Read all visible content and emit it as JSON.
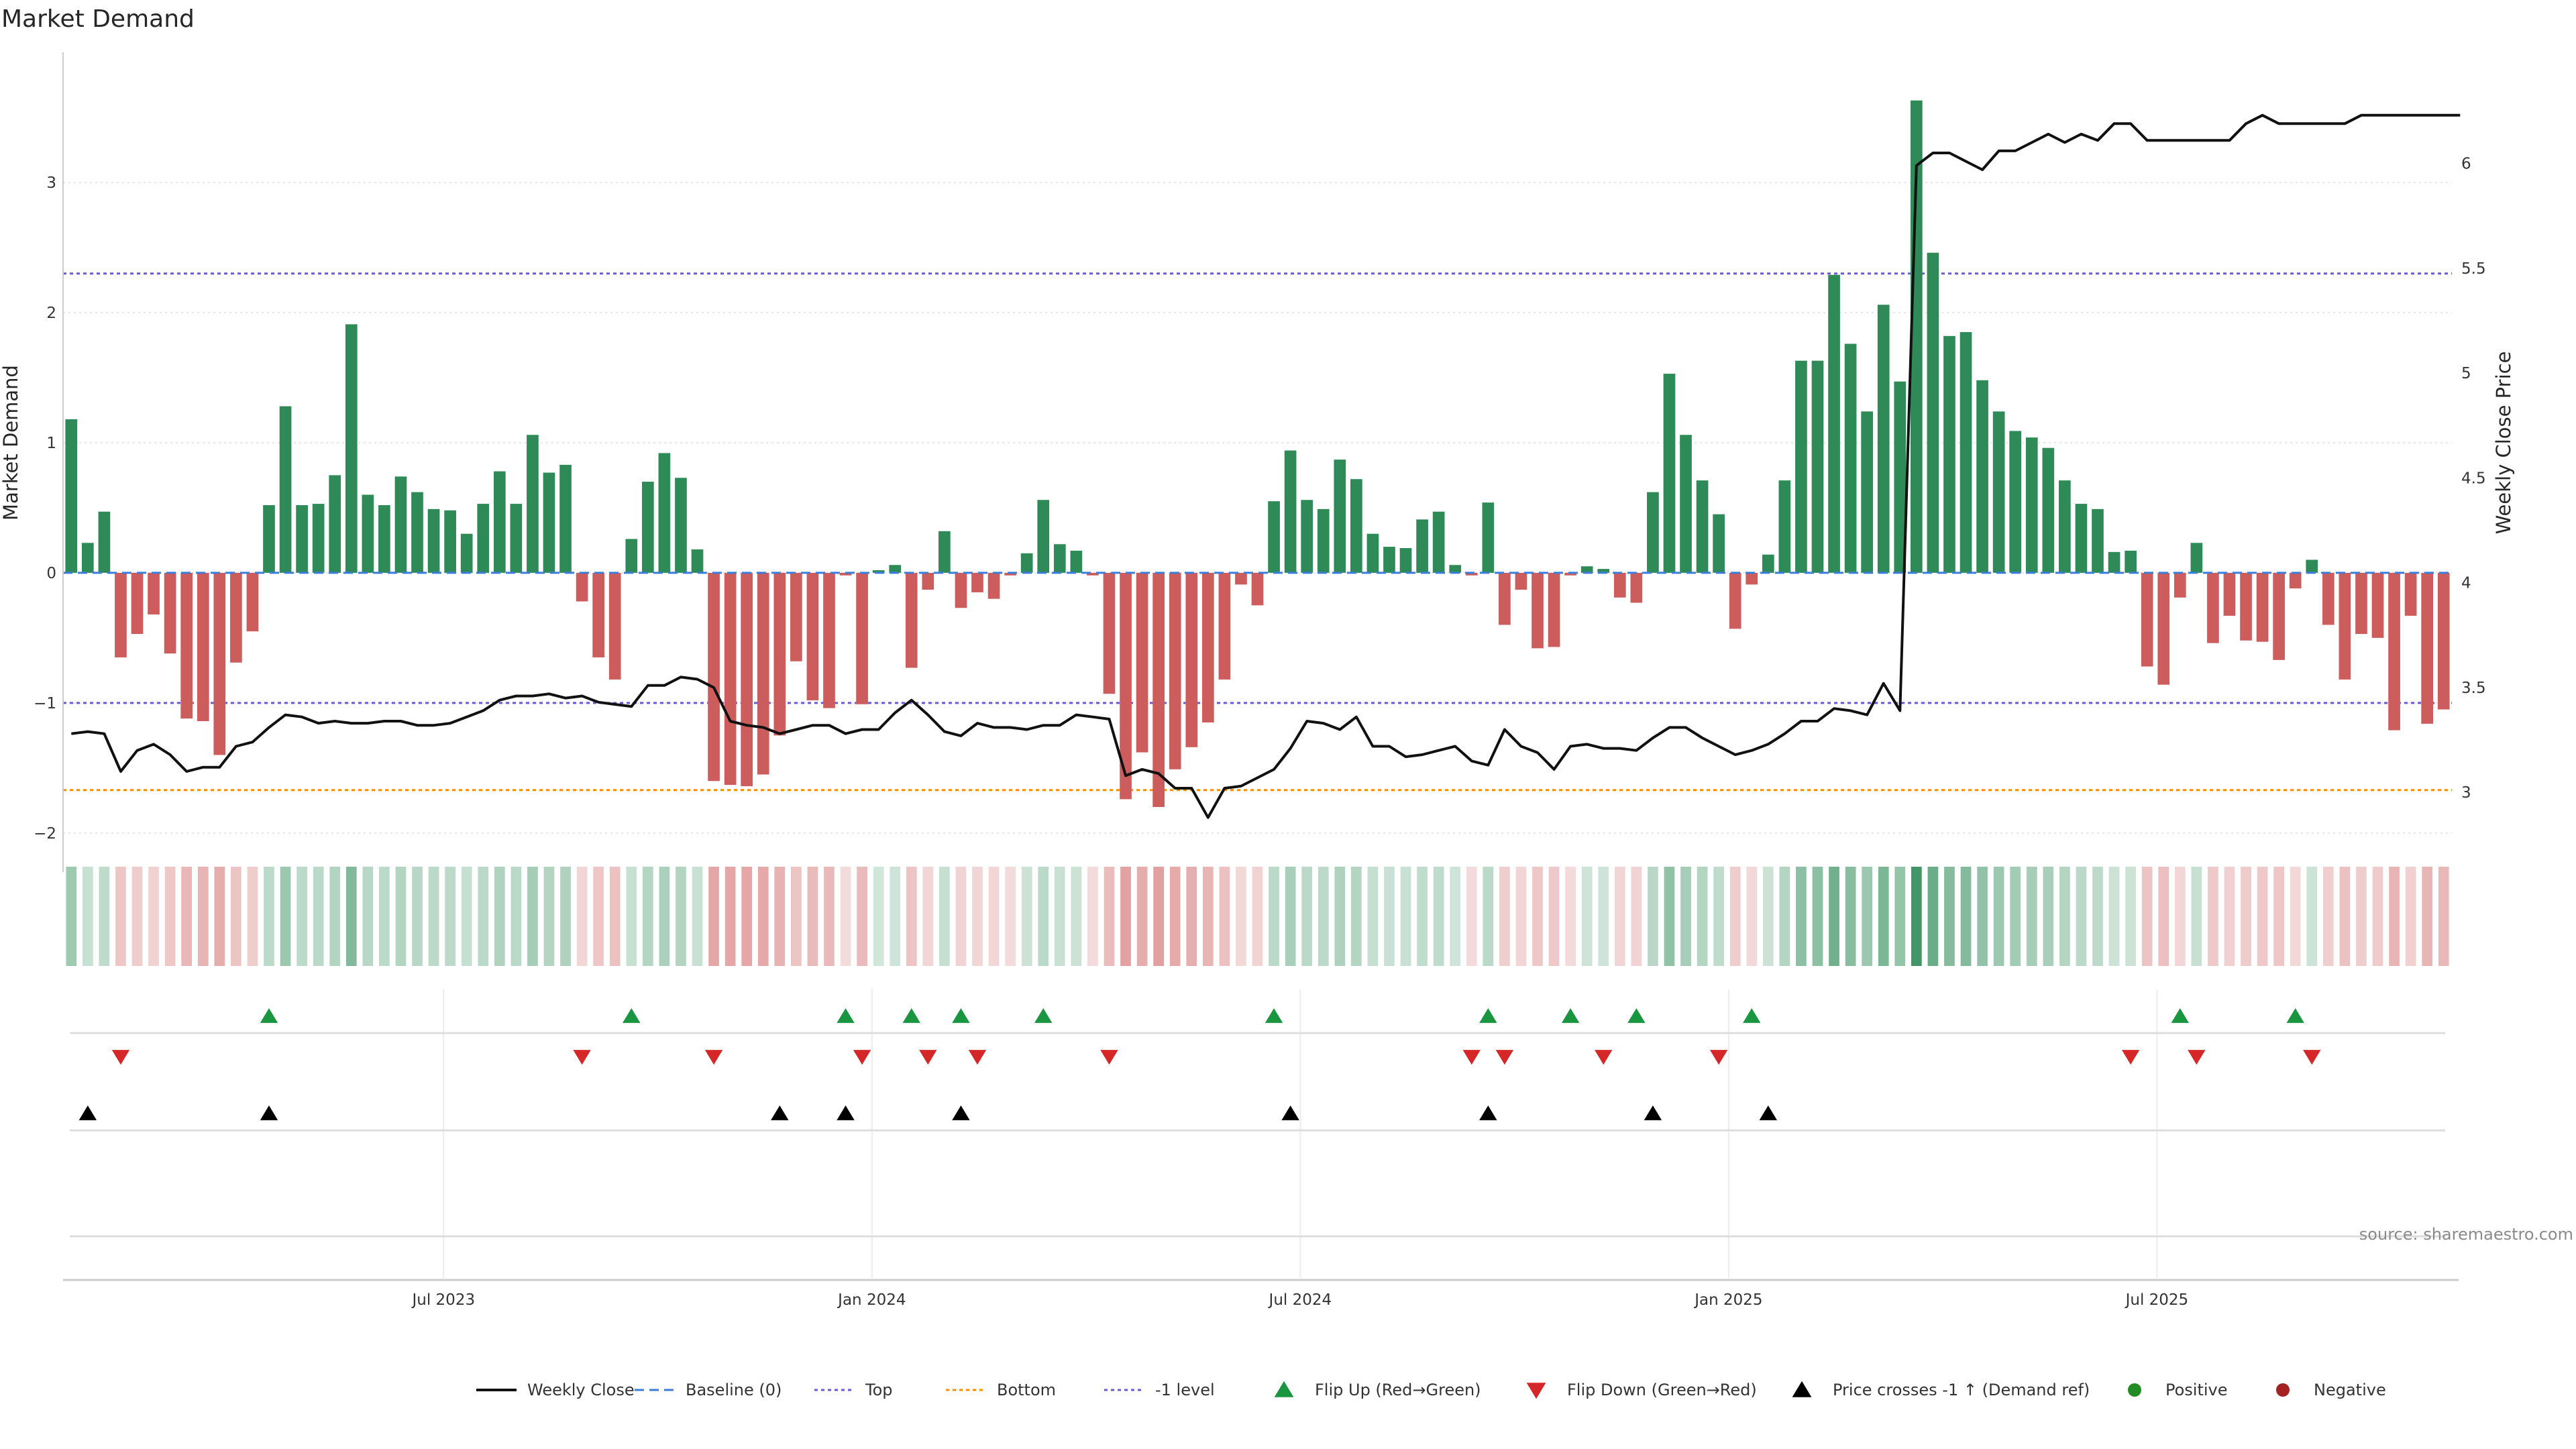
{
  "chart_data": {
    "type": "bar",
    "title": "Market Demand",
    "ylabel": "Market Demand",
    "y2label": "Weekly Close Price",
    "ylim": [
      -2.3,
      4.0
    ],
    "y_ticks": [
      -2,
      -1,
      0,
      1,
      2,
      3
    ],
    "y2lim": [
      2.62,
      6.53
    ],
    "y2_ticks": [
      3,
      3.5,
      4,
      4.5,
      5,
      5.5,
      6
    ],
    "x_tick_labels": [
      "Jul 2023",
      "Jan 2024",
      "Jul 2024",
      "Jan 2025",
      "Jul 2025"
    ],
    "x_tick_index": [
      23,
      49,
      75,
      101,
      127
    ],
    "grid": true,
    "colors": {
      "positive": "#2e8b57",
      "negative": "#cd5c5c",
      "price": "#111111",
      "top_line": "#6a5acd",
      "bottom_line": "#ff8c00",
      "minus1_line": "#6a5acd",
      "flip_up": "#1a9641",
      "flip_down": "#d62728",
      "cross": "#000000"
    },
    "levels": {
      "top": 2.3,
      "bottom": -1.67,
      "minus1": -1.0
    },
    "demand": [
      1.18,
      0.23,
      0.47,
      -0.65,
      -0.47,
      -0.32,
      -0.62,
      -1.12,
      -1.14,
      -1.4,
      -0.69,
      -0.45,
      0.52,
      1.28,
      0.52,
      0.53,
      0.75,
      1.91,
      0.6,
      0.52,
      0.74,
      0.62,
      0.49,
      0.48,
      0.3,
      0.53,
      0.78,
      0.53,
      1.06,
      0.77,
      0.83,
      -0.22,
      -0.65,
      -0.82,
      0.26,
      0.7,
      0.92,
      0.73,
      0.18,
      -1.6,
      -1.63,
      -1.64,
      -1.55,
      -1.25,
      -0.68,
      -0.98,
      -1.04,
      -0.02,
      -1.01,
      0.02,
      0.06,
      -0.73,
      -0.13,
      0.32,
      -0.27,
      -0.15,
      -0.2,
      -0.02,
      0.15,
      0.56,
      0.22,
      0.17,
      -0.02,
      -0.93,
      -1.74,
      -1.38,
      -1.8,
      -1.51,
      -1.34,
      -1.15,
      -0.82,
      -0.09,
      -0.25,
      0.55,
      0.94,
      0.56,
      0.49,
      0.87,
      0.72,
      0.3,
      0.2,
      0.19,
      0.41,
      0.47,
      0.06,
      -0.02,
      0.54,
      -0.4,
      -0.13,
      -0.58,
      -0.57,
      -0.02,
      0.05,
      0.03,
      -0.19,
      -0.23,
      0.62,
      1.53,
      1.06,
      0.71,
      0.45,
      -0.43,
      -0.09,
      0.14,
      0.71,
      1.63,
      1.63,
      2.29,
      1.76,
      1.24,
      2.06,
      1.47,
      3.63,
      2.46,
      1.82,
      1.85,
      1.48,
      1.24,
      1.09,
      1.04,
      0.96,
      0.71,
      0.53,
      0.49,
      0.16,
      0.17,
      -0.72,
      -0.86,
      -0.19,
      0.23,
      -0.54,
      -0.33,
      -0.52,
      -0.53,
      -0.67,
      -0.12,
      0.1,
      -0.4,
      -0.82,
      -0.47,
      -0.5,
      -1.21,
      -0.33,
      -1.16,
      -1.05
    ],
    "price": [
      3.28,
      3.29,
      3.28,
      3.1,
      3.2,
      3.23,
      3.18,
      3.1,
      3.12,
      3.12,
      3.22,
      3.24,
      3.31,
      3.37,
      3.36,
      3.33,
      3.34,
      3.33,
      3.33,
      3.34,
      3.34,
      3.32,
      3.32,
      3.33,
      3.36,
      3.39,
      3.44,
      3.46,
      3.46,
      3.47,
      3.45,
      3.46,
      3.43,
      3.42,
      3.41,
      3.51,
      3.51,
      3.55,
      3.54,
      3.5,
      3.34,
      3.32,
      3.31,
      3.28,
      3.3,
      3.32,
      3.32,
      3.28,
      3.3,
      3.3,
      3.38,
      3.44,
      3.37,
      3.29,
      3.27,
      3.33,
      3.31,
      3.31,
      3.3,
      3.32,
      3.32,
      3.37,
      3.36,
      3.35,
      3.08,
      3.11,
      3.09,
      3.02,
      3.02,
      2.88,
      3.02,
      3.03,
      3.07,
      3.11,
      3.21,
      3.34,
      3.33,
      3.3,
      3.36,
      3.22,
      3.22,
      3.17,
      3.18,
      3.2,
      3.22,
      3.15,
      3.13,
      3.3,
      3.22,
      3.19,
      3.11,
      3.22,
      3.23,
      3.21,
      3.21,
      3.2,
      3.26,
      3.31,
      3.31,
      3.26,
      3.22,
      3.18,
      3.2,
      3.23,
      3.28,
      3.34,
      3.34,
      3.4,
      3.39,
      3.37,
      3.52,
      3.39,
      5.99,
      6.05,
      6.05,
      6.01,
      5.97,
      6.06,
      6.06,
      6.1,
      6.14,
      6.1,
      6.14,
      6.11,
      6.19,
      6.19,
      6.11,
      6.11,
      6.11,
      6.11,
      6.11,
      6.11,
      6.19,
      6.23,
      6.19,
      6.19,
      6.19,
      6.19,
      6.19,
      6.23,
      6.23,
      6.23,
      6.23,
      6.23,
      6.23,
      6.23
    ],
    "flip_up": [
      12,
      34,
      47,
      51,
      54,
      59,
      73,
      86,
      91,
      95,
      102,
      128,
      135
    ],
    "flip_down": [
      3,
      31,
      39,
      48,
      52,
      55,
      63,
      85,
      87,
      93,
      100,
      125,
      129,
      136
    ],
    "cross_up": [
      1,
      12,
      43,
      47,
      54,
      74,
      86,
      96,
      103
    ],
    "legend": [
      "Weekly Close",
      "Baseline (0)",
      "Top",
      "Bottom",
      "-1 level",
      "Flip Up (Red→Green)",
      "Flip Down (Green→Red)",
      "Price crosses -1 ↑ (Demand ref)",
      "Positive",
      "Negative"
    ],
    "source": "source: sharemaestro.com"
  }
}
